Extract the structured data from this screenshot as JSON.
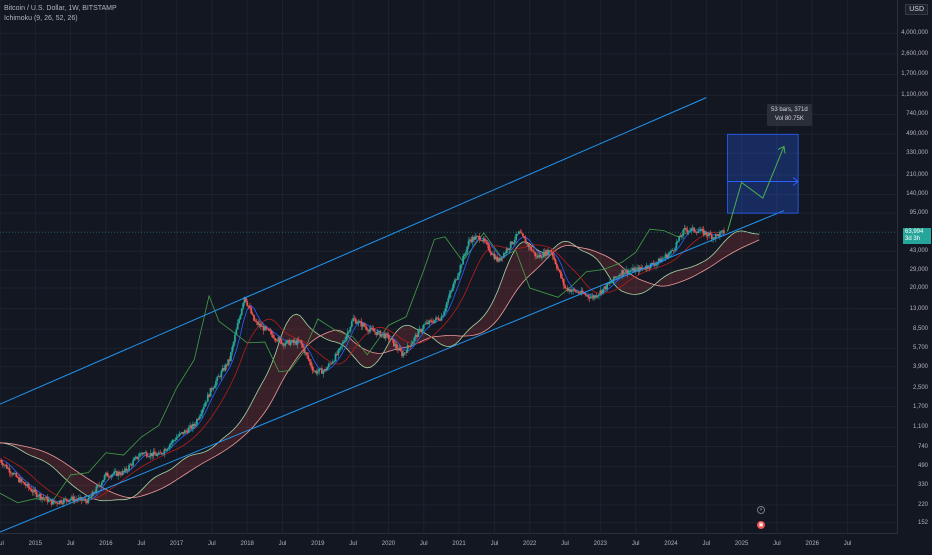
{
  "legend": {
    "symbol": "Bitcoin / U.S. Dollar, 1W, BITSTAMP",
    "indicator": "Ichimoku (9, 26, 52, 26)"
  },
  "price_scale": {
    "currency": "USD",
    "last_price": "63,994",
    "countdown": "3d 3h"
  },
  "measure_tooltip": {
    "bars": "53 bars, 371d",
    "vol": "Vol 80.75K"
  },
  "event_icons": {
    "earnings": "⚡",
    "flag": "▣"
  },
  "colors": {
    "background": "#131722",
    "grid": "#1e222d",
    "up": "#26a69a",
    "down": "#ef5350",
    "channel": "#2196f3",
    "tenkan": "#2962ff",
    "kijun": "#b71c1c",
    "chikou": "#43a047",
    "span_a": "#a5d6a7",
    "span_b": "#ef9a9a",
    "projection": "#4caf50",
    "measure_box": "#1e3a8a"
  },
  "chart_data": {
    "type": "line",
    "title": "Bitcoin / U.S. Dollar, 1W, BITSTAMP",
    "y_scale": "log",
    "ylim": [
      120,
      8000000
    ],
    "x_range": [
      2014.5,
      2027.2
    ],
    "y_ticks": [
      152,
      220,
      330,
      490,
      740,
      1100,
      1700,
      2500,
      3900,
      5700,
      8500,
      13000,
      20000,
      29000,
      43000,
      95000,
      140000,
      210000,
      330000,
      490000,
      740000,
      1100000,
      1700000,
      2600000,
      4000000
    ],
    "y_tick_labels": [
      "152",
      "220",
      "330",
      "490",
      "740",
      "1,100",
      "1,700",
      "2,500",
      "3,900",
      "5,700",
      "8,500",
      "13,000",
      "20,000",
      "29,000",
      "43,000",
      "95,000",
      "140,000",
      "210,000",
      "330,000",
      "490,000",
      "740,000",
      "1,100,000",
      "1,700,000",
      "2,600,000",
      "4,000,000"
    ],
    "x_ticks": [
      2014.5,
      2015,
      2015.5,
      2016,
      2016.5,
      2017,
      2017.5,
      2018,
      2018.5,
      2019,
      2019.5,
      2020,
      2020.5,
      2021,
      2021.5,
      2022,
      2022.5,
      2023,
      2023.5,
      2024,
      2024.5,
      2025,
      2025.5,
      2026,
      2026.5
    ],
    "x_tick_labels": [
      "Jul",
      "2015",
      "Jul",
      "2016",
      "Jul",
      "2017",
      "Jul",
      "2018",
      "Jul",
      "2019",
      "Jul",
      "2020",
      "Jul",
      "2021",
      "Jul",
      "2022",
      "Jul",
      "2023",
      "Jul",
      "2024",
      "Jul",
      "2025",
      "Jul",
      "2026",
      "Jul"
    ],
    "grid": true,
    "last_price": 63994,
    "series": [
      {
        "kind": "price",
        "x": [
          2014.0,
          2014.25,
          2014.5,
          2014.75,
          2015.0,
          2015.25,
          2015.5,
          2015.75,
          2016.0,
          2016.25,
          2016.5,
          2016.75,
          2017.0,
          2017.25,
          2017.5,
          2017.75,
          2017.96,
          2018.1,
          2018.25,
          2018.5,
          2018.75,
          2018.95,
          2019.1,
          2019.3,
          2019.5,
          2019.75,
          2020.0,
          2020.2,
          2020.5,
          2020.75,
          2021.0,
          2021.15,
          2021.3,
          2021.55,
          2021.85,
          2022.1,
          2022.3,
          2022.5,
          2022.9,
          2023.1,
          2023.3,
          2023.55,
          2023.8,
          2024.0,
          2024.2,
          2024.4,
          2024.6,
          2024.75
        ],
        "y": [
          800,
          600,
          560,
          380,
          280,
          230,
          250,
          240,
          410,
          430,
          650,
          620,
          900,
          1150,
          2500,
          4500,
          17000,
          10000,
          8500,
          6400,
          6500,
          3500,
          3600,
          5300,
          10500,
          8300,
          7200,
          5000,
          9200,
          11000,
          29000,
          55000,
          58000,
          35000,
          63000,
          38000,
          44000,
          20000,
          16500,
          21000,
          28000,
          29500,
          34000,
          42000,
          68000,
          66000,
          58000,
          63994
        ]
      },
      {
        "kind": "channel_upper",
        "x": [
          2014.0,
          2024.5
        ],
        "y": [
          1300,
          1050000
        ]
      },
      {
        "kind": "channel_lower",
        "x": [
          2014.5,
          2025.6
        ],
        "y": [
          125,
          100000
        ]
      },
      {
        "kind": "projection",
        "x": [
          2024.8,
          2025.0,
          2025.3,
          2025.6
        ],
        "y": [
          65000,
          180000,
          130000,
          380000
        ]
      }
    ],
    "measure": {
      "x": [
        2024.8,
        2025.8
      ],
      "y": [
        95000,
        490000
      ]
    }
  }
}
